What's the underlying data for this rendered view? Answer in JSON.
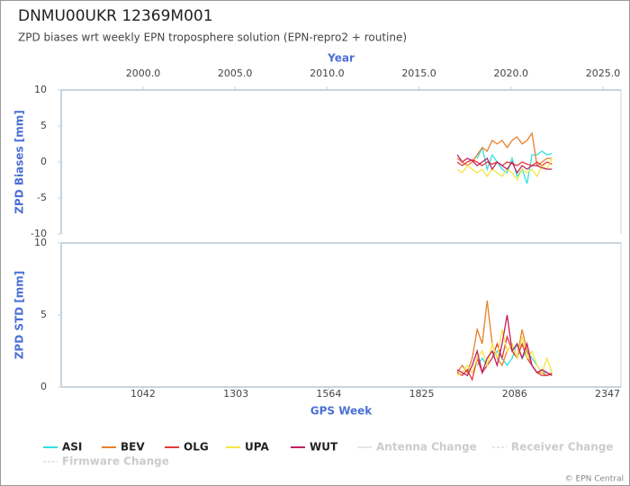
{
  "title": "DNMU00UKR 12369M001",
  "subtitle": "ZPD biases wrt weekly EPN troposphere solution (EPN-repro2 + routine)",
  "credit": "© EPN Central",
  "events_legend": [
    "Antenna Change",
    "Receiver Change",
    "Firmware Change"
  ],
  "chart_data": [
    {
      "type": "line",
      "ylabel": "ZPD Biases [mm]",
      "x2label": "Year",
      "xlim": [
        812,
        2385
      ],
      "ylim": [
        -10,
        10
      ],
      "yticks": [
        -10,
        -5,
        0,
        5,
        10
      ],
      "x2lim": [
        1995.55,
        2025.98
      ],
      "x2ticks": [
        {
          "value": 2000,
          "label": "2000.0"
        },
        {
          "value": 2005,
          "label": "2005.0"
        },
        {
          "value": 2010,
          "label": "2010.0"
        },
        {
          "value": 2015,
          "label": "2015.0"
        },
        {
          "value": 2020,
          "label": "2020.0"
        },
        {
          "value": 2025,
          "label": "2025.0"
        }
      ],
      "x": [
        1925,
        1939,
        1953,
        1967,
        1981,
        1995,
        2009,
        2023,
        2037,
        2051,
        2065,
        2079,
        2093,
        2107,
        2121,
        2135,
        2149,
        2163,
        2177,
        2191
      ],
      "series": [
        {
          "name": "ASI",
          "color": "#33e0e0",
          "values": [
            null,
            null,
            null,
            null,
            0.5,
            2,
            -1,
            1,
            0,
            -1,
            -1.5,
            0.5,
            -2,
            -1,
            -3,
            1,
            1,
            1.5,
            1,
            1.2
          ]
        },
        {
          "name": "BEV",
          "color": "#e8802a",
          "values": [
            0.5,
            0,
            -0.5,
            0,
            1,
            2,
            1.5,
            3,
            2.5,
            3,
            2,
            3,
            3.5,
            2.5,
            3,
            4,
            -0.5,
            0,
            0.5,
            0.5
          ]
        },
        {
          "name": "OLG",
          "color": "#e03a3a",
          "values": [
            0,
            -0.5,
            0,
            0.3,
            0,
            -0.5,
            0,
            -0.3,
            0,
            -0.5,
            0,
            -0.2,
            -0.5,
            0,
            -0.3,
            -0.5,
            0,
            -0.5,
            0,
            -0.3
          ]
        },
        {
          "name": "UPA",
          "color": "#f5e642",
          "values": [
            -1,
            -1.5,
            -0.5,
            -1,
            -1.5,
            -1,
            -2,
            -1,
            -1.5,
            -2,
            -1,
            -1.5,
            -2.5,
            -1,
            -1.5,
            -1,
            -2,
            -0.5,
            -1,
            0.5
          ]
        },
        {
          "name": "WUT",
          "color": "#c0205e",
          "values": [
            1,
            0,
            0.5,
            0.2,
            -0.5,
            0,
            0.5,
            -1,
            0,
            -0.5,
            -1,
            0,
            -1.5,
            -0.5,
            -1,
            -0.5,
            -0.5,
            -0.8,
            -1,
            -1
          ]
        }
      ]
    },
    {
      "type": "line",
      "ylabel": "ZPD STD [mm]",
      "xlabel": "GPS Week",
      "xlim": [
        812,
        2385
      ],
      "ylim": [
        0,
        10
      ],
      "yticks": [
        0,
        5,
        10
      ],
      "xticks": [
        1042,
        1303,
        1564,
        1825,
        2086,
        2347
      ],
      "x": [
        1925,
        1939,
        1953,
        1967,
        1981,
        1995,
        2009,
        2023,
        2037,
        2051,
        2065,
        2079,
        2093,
        2107,
        2121,
        2135,
        2149,
        2163,
        2177,
        2191
      ],
      "series": [
        {
          "name": "ASI",
          "color": "#33e0e0",
          "values": [
            null,
            null,
            null,
            null,
            1.5,
            2,
            1.5,
            2,
            2.5,
            2,
            1.5,
            2,
            3,
            2,
            2.5,
            2,
            1.5,
            1,
            1,
            0.8
          ]
        },
        {
          "name": "BEV",
          "color": "#e8802a",
          "values": [
            1,
            1.5,
            1,
            2,
            4,
            3,
            6,
            3,
            2,
            1.5,
            2.5,
            3,
            2,
            4,
            2.5,
            1.5,
            1,
            1,
            0.8,
            1
          ]
        },
        {
          "name": "OLG",
          "color": "#e03a3a",
          "values": [
            1,
            0.8,
            1.2,
            0.5,
            2,
            1,
            1.5,
            2,
            3,
            2,
            3.5,
            2.5,
            2,
            3,
            2,
            1.5,
            1,
            0.8,
            0.8,
            0.9
          ]
        },
        {
          "name": "UPA",
          "color": "#f5e642",
          "values": [
            0.8,
            1,
            1.5,
            1,
            2,
            2.5,
            1.5,
            3,
            2,
            4,
            2.5,
            3,
            2,
            3.5,
            2,
            2.5,
            1.5,
            1,
            2,
            1
          ]
        },
        {
          "name": "WUT",
          "color": "#c0205e",
          "values": [
            1.2,
            1,
            0.8,
            1.5,
            2.5,
            1,
            2,
            2.5,
            1.5,
            3,
            5,
            2.5,
            3,
            2,
            3,
            1.5,
            1,
            1.2,
            1,
            0.8
          ]
        }
      ]
    }
  ]
}
